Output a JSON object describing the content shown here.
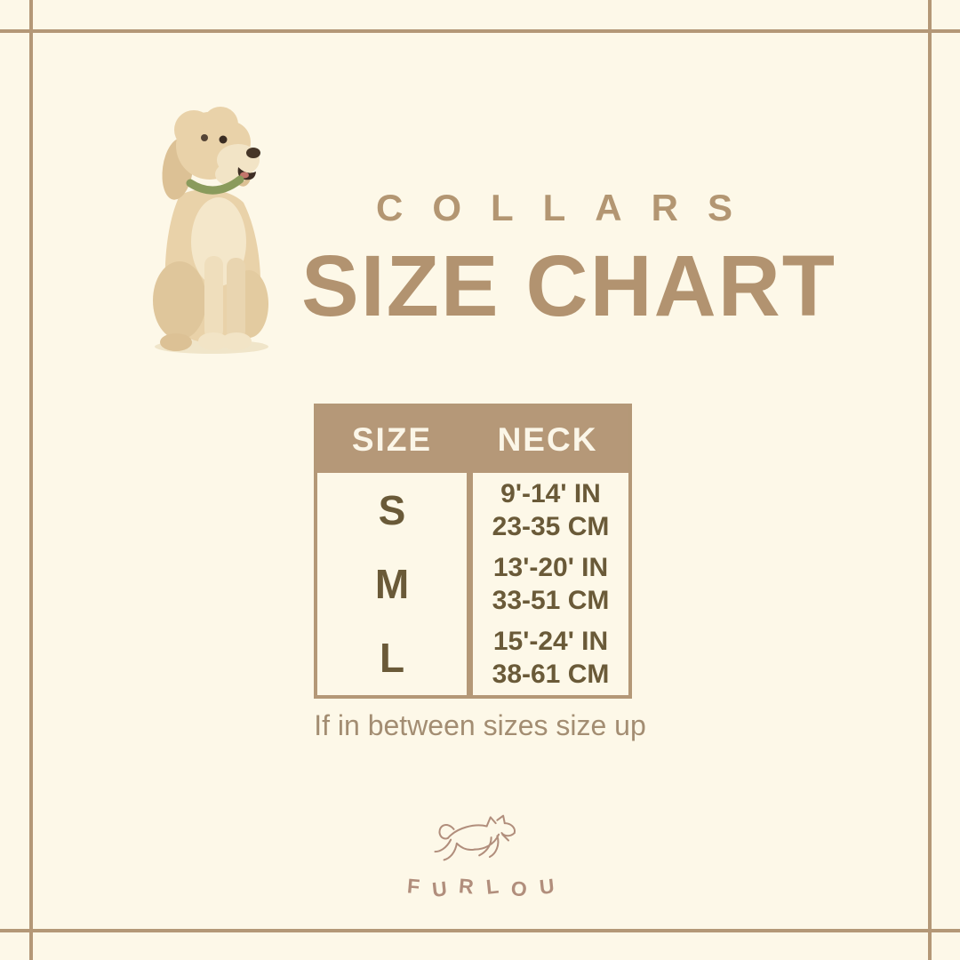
{
  "header": {
    "category": "COLLARS",
    "title": "SIZE CHART"
  },
  "chart_data": {
    "type": "table",
    "title": "COLLARS SIZE CHART",
    "columns": [
      "SIZE",
      "NECK"
    ],
    "rows": [
      {
        "size": "S",
        "neck_in": "9'-14' IN",
        "neck_cm": "23-35 CM"
      },
      {
        "size": "M",
        "neck_in": "13'-20' IN",
        "neck_cm": "33-51 CM"
      },
      {
        "size": "L",
        "neck_in": "15'-24' IN",
        "neck_cm": "38-61 CM"
      }
    ],
    "note": "If in between sizes size up"
  },
  "footer": {
    "brand": "FURLOU"
  },
  "icons": {
    "hero_illustration": "sitting-doodle-dog-photo",
    "brand_logo": "leaping-dog-line-art"
  },
  "colors": {
    "background": "#FDF8E8",
    "frame": "#B49877",
    "title_text": "#B29370",
    "table_header_bg": "#B59878",
    "table_header_text": "#FBF6E8",
    "cell_text": "#6A5A38",
    "note_text": "#A38D72",
    "logo": "#B18E7C",
    "collar_green": "#8A9B5C"
  }
}
